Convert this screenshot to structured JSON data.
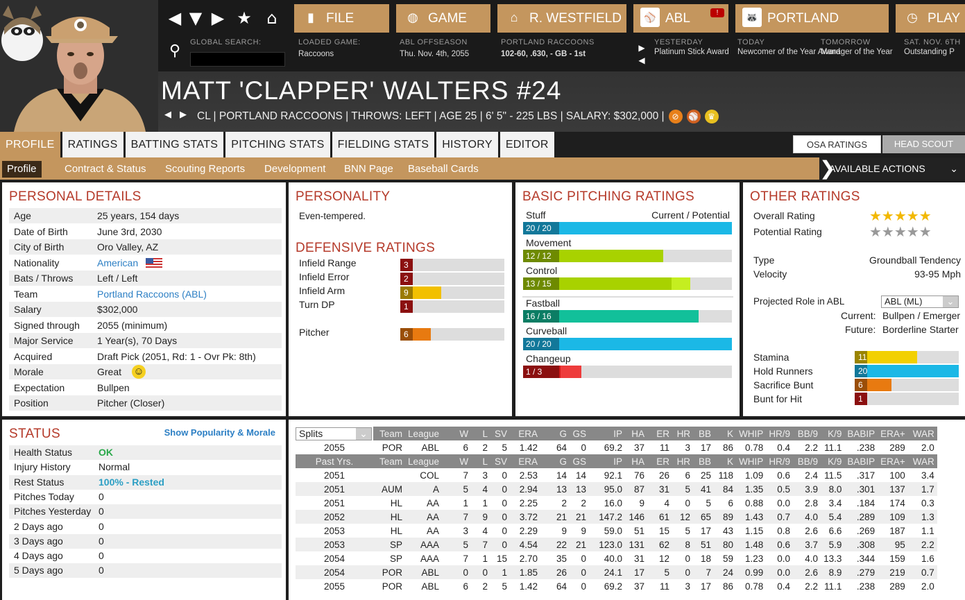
{
  "nav": {
    "buttons": [
      {
        "label": "FILE",
        "icon": "file-icon"
      },
      {
        "label": "GAME",
        "icon": "globe-icon"
      },
      {
        "label": "R. WESTFIELD",
        "icon": "home-icon"
      },
      {
        "label": "ABL",
        "icon": "league-logo"
      },
      {
        "label": "PORTLAND",
        "icon": "team-logo"
      },
      {
        "label": "PLAY",
        "icon": "play-icon"
      }
    ],
    "global_search_label": "GLOBAL SEARCH:",
    "info": [
      {
        "label": "LOADED GAME:",
        "value": "Raccoons"
      },
      {
        "label": "ABL OFFSEASON",
        "value": "Thu. Nov. 4th, 2055"
      },
      {
        "label": "PORTLAND RACCOONS",
        "value": "102-60, .630, - GB - 1st"
      }
    ],
    "news": [
      {
        "label": "YESTERDAY",
        "value": "Platinum Stick Award"
      },
      {
        "label": "TODAY",
        "value": "Newcomer of the Year Award"
      },
      {
        "label": "TOMORROW",
        "value": "Manager of the Year"
      },
      {
        "label": "SAT. NOV. 6TH",
        "value": "Outstanding P"
      }
    ]
  },
  "player": {
    "name": "MATT 'CLAPPER' WALTERS  #24",
    "line": "CL | PORTLAND RACCOONS  |  THROWS: LEFT  |  AGE 25  |  6' 5\" - 225 LBS  |  SALARY: $302,000  |"
  },
  "tabs": [
    "PROFILE",
    "RATINGS",
    "BATTING STATS",
    "PITCHING STATS",
    "FIELDING STATS",
    "HISTORY",
    "EDITOR"
  ],
  "subtabs": [
    "Profile",
    "Contract & Status",
    "Scouting Reports",
    "Development",
    "BNN Page",
    "Baseball Cards"
  ],
  "actions_label": "AVAILABLE ACTIONS",
  "rating_toggle": [
    "OSA RATINGS",
    "HEAD SCOUT"
  ],
  "personal": {
    "title": "PERSONAL DETAILS",
    "rows": [
      [
        "Age",
        "25 years, 154 days"
      ],
      [
        "Date of Birth",
        "June 3rd, 2030"
      ],
      [
        "City of Birth",
        "Oro Valley, AZ"
      ],
      [
        "Nationality",
        "American"
      ],
      [
        "Bats / Throws",
        "Left / Left"
      ],
      [
        "Team",
        "Portland Raccoons (ABL)"
      ],
      [
        "Salary",
        "$302,000"
      ],
      [
        "Signed through",
        "2055 (minimum)"
      ],
      [
        "Major Service",
        "1 Year(s), 70 Days"
      ],
      [
        "Acquired",
        "Draft Pick (2051, Rd: 1 - Ovr Pk: 8th)"
      ],
      [
        "Morale",
        "Great"
      ],
      [
        "Expectation",
        "Bullpen"
      ],
      [
        "Position",
        "Pitcher (Closer)"
      ]
    ]
  },
  "personality": {
    "title": "PERSONALITY",
    "text": "Even-tempered."
  },
  "defensive": {
    "title": "DEFENSIVE RATINGS",
    "rows": [
      {
        "label": "Infield Range",
        "value": "3",
        "frac": 0.07,
        "color": "#d21c1c",
        "dark": "#8b1010"
      },
      {
        "label": "Infield Error",
        "value": "2",
        "frac": 0.05,
        "color": "#d21c1c",
        "dark": "#8b1010"
      },
      {
        "label": "Infield Arm",
        "value": "9",
        "frac": 0.39,
        "color": "#f2c000",
        "dark": "#9a7a00"
      },
      {
        "label": "Turn DP",
        "value": "1",
        "frac": 0.01,
        "color": "#d21c1c",
        "dark": "#8b1010"
      },
      {
        "label": "Pitcher",
        "value": "6",
        "frac": 0.29,
        "color": "#e87a10",
        "dark": "#9a4e08"
      }
    ]
  },
  "pitching": {
    "title": "BASIC PITCHING RATINGS",
    "cp_label": "Current / Potential",
    "rows": [
      {
        "label": "Stuff",
        "value": "20 / 20",
        "frac": 1.0,
        "pot": 1.0,
        "color": "#1bb8e6",
        "dark": "#12789a"
      },
      {
        "label": "Movement",
        "value": "12 / 12",
        "frac": 0.67,
        "pot": 0.67,
        "color": "#a8d200",
        "dark": "#6e8a00"
      },
      {
        "label": "Control",
        "value": "13 / 15",
        "frac": 0.71,
        "pot": 0.8,
        "color": "#a8d200",
        "dark": "#6e8a00"
      },
      {
        "label": "Fastball",
        "value": "16 / 16",
        "frac": 0.84,
        "pot": 0.84,
        "color": "#12c09a",
        "dark": "#0b7d64"
      },
      {
        "label": "Curveball",
        "value": "20 / 20",
        "frac": 1.0,
        "pot": 1.0,
        "color": "#1bb8e6",
        "dark": "#12789a"
      },
      {
        "label": "Changeup",
        "value": "1 / 3",
        "frac": 0.18,
        "pot": 0.28,
        "color": "#d21c1c",
        "dark": "#8b1010"
      }
    ]
  },
  "other": {
    "title": "OTHER RATINGS",
    "overall_label": "Overall Rating",
    "potential_label": "Potential Rating",
    "overall_stars": 5,
    "potential_stars": 0,
    "type_label": "Type",
    "type_value": "Groundball Tendency",
    "velocity_label": "Velocity",
    "velocity_value": "93-95 Mph",
    "role_label": "Projected Role in ABL",
    "role_select": "ABL (ML)",
    "current_label": "Current:",
    "current_value": "Bullpen / Emerger",
    "future_label": "Future:",
    "future_value": "Borderline Starter",
    "rows": [
      {
        "label": "Stamina",
        "value": "11",
        "frac": 0.6,
        "color": "#f2d000",
        "dark": "#9a8400"
      },
      {
        "label": "Hold Runners",
        "value": "20",
        "frac": 1.0,
        "color": "#1bb8e6",
        "dark": "#12789a"
      },
      {
        "label": "Sacrifice Bunt",
        "value": "6",
        "frac": 0.35,
        "color": "#e87a10",
        "dark": "#9a4e08"
      },
      {
        "label": "Bunt for Hit",
        "value": "1",
        "frac": 0.05,
        "color": "#d21c1c",
        "dark": "#8b1010"
      }
    ]
  },
  "status": {
    "title": "STATUS",
    "link": "Show Popularity & Morale",
    "rows": [
      [
        "Health Status",
        "OK"
      ],
      [
        "Injury History",
        "Normal"
      ],
      [
        "Rest Status",
        "100% - Rested"
      ],
      [
        "Pitches Today",
        "0"
      ],
      [
        "Pitches Yesterday",
        "0"
      ],
      [
        "2 Days ago",
        "0"
      ],
      [
        "3 Days ago",
        "0"
      ],
      [
        "4 Days ago",
        "0"
      ],
      [
        "5 Days ago",
        "0"
      ]
    ]
  },
  "stats": {
    "splits": "Splits",
    "headers": [
      "Team",
      "League",
      "W",
      "L",
      "SV",
      "ERA",
      "G",
      "GS",
      "IP",
      "HA",
      "ER",
      "HR",
      "BB",
      "K",
      "WHIP",
      "HR/9",
      "BB/9",
      "K/9",
      "BABIP",
      "ERA+",
      "WAR"
    ],
    "current": [
      [
        "2055",
        "POR",
        "ABL",
        "6",
        "2",
        "5",
        "1.42",
        "64",
        "0",
        "69.2",
        "37",
        "11",
        "3",
        "17",
        "86",
        "0.78",
        "0.4",
        "2.2",
        "11.1",
        ".238",
        "289",
        "2.0"
      ]
    ],
    "past_label": "Past Yrs.",
    "past": [
      [
        "2051",
        "",
        "COL",
        "7",
        "3",
        "0",
        "2.53",
        "14",
        "14",
        "92.1",
        "76",
        "26",
        "6",
        "25",
        "118",
        "1.09",
        "0.6",
        "2.4",
        "11.5",
        ".317",
        "100",
        "3.4"
      ],
      [
        "2051",
        "AUM",
        "A",
        "5",
        "4",
        "0",
        "2.94",
        "13",
        "13",
        "95.0",
        "87",
        "31",
        "5",
        "41",
        "84",
        "1.35",
        "0.5",
        "3.9",
        "8.0",
        ".301",
        "137",
        "1.7"
      ],
      [
        "2051",
        "HL",
        "AA",
        "1",
        "1",
        "0",
        "2.25",
        "2",
        "2",
        "16.0",
        "9",
        "4",
        "0",
        "5",
        "6",
        "0.88",
        "0.0",
        "2.8",
        "3.4",
        ".184",
        "174",
        "0.3"
      ],
      [
        "2052",
        "HL",
        "AA",
        "7",
        "9",
        "0",
        "3.72",
        "21",
        "21",
        "147.2",
        "146",
        "61",
        "12",
        "65",
        "89",
        "1.43",
        "0.7",
        "4.0",
        "5.4",
        ".289",
        "109",
        "1.3"
      ],
      [
        "2053",
        "HL",
        "AA",
        "3",
        "4",
        "0",
        "2.29",
        "9",
        "9",
        "59.0",
        "51",
        "15",
        "5",
        "17",
        "43",
        "1.15",
        "0.8",
        "2.6",
        "6.6",
        ".269",
        "187",
        "1.1"
      ],
      [
        "2053",
        "SP",
        "AAA",
        "5",
        "7",
        "0",
        "4.54",
        "22",
        "21",
        "123.0",
        "131",
        "62",
        "8",
        "51",
        "80",
        "1.48",
        "0.6",
        "3.7",
        "5.9",
        ".308",
        "95",
        "2.2"
      ],
      [
        "2054",
        "SP",
        "AAA",
        "7",
        "1",
        "15",
        "2.70",
        "35",
        "0",
        "40.0",
        "31",
        "12",
        "0",
        "18",
        "59",
        "1.23",
        "0.0",
        "4.0",
        "13.3",
        ".344",
        "159",
        "1.6"
      ],
      [
        "2054",
        "POR",
        "ABL",
        "0",
        "0",
        "1",
        "1.85",
        "26",
        "0",
        "24.1",
        "17",
        "5",
        "0",
        "7",
        "24",
        "0.99",
        "0.0",
        "2.6",
        "8.9",
        ".279",
        "219",
        "0.7"
      ],
      [
        "2055",
        "POR",
        "ABL",
        "6",
        "2",
        "5",
        "1.42",
        "64",
        "0",
        "69.2",
        "37",
        "11",
        "3",
        "17",
        "86",
        "0.78",
        "0.4",
        "2.2",
        "11.1",
        ".238",
        "289",
        "2.0"
      ]
    ]
  }
}
